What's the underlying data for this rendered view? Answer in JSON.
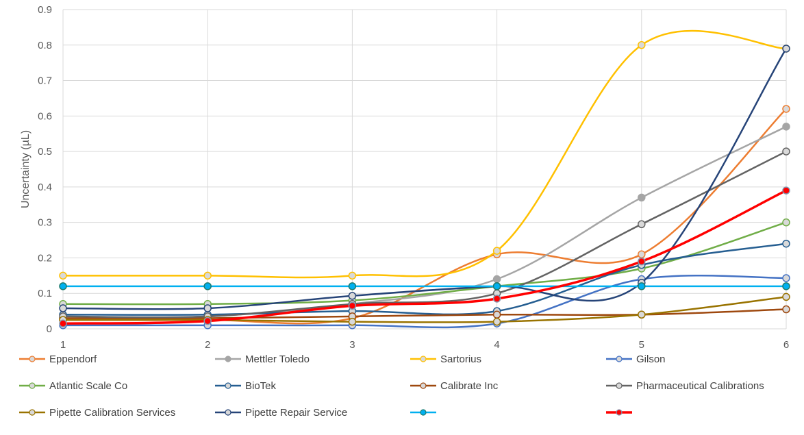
{
  "chart_data": {
    "type": "line",
    "smooth": true,
    "title": "",
    "xlabel": "",
    "ylabel": "Uncertainty (µL)",
    "x": [
      1,
      2,
      3,
      4,
      5,
      6
    ],
    "xlim": [
      1,
      6
    ],
    "ylim": [
      0,
      0.9
    ],
    "yticks": [
      "0",
      "0.1",
      "0.2",
      "0.3",
      "0.4",
      "0.5",
      "0.6",
      "0.7",
      "0.8",
      "0.9"
    ],
    "xticks": [
      "1",
      "2",
      "3",
      "4",
      "5",
      "6"
    ],
    "grid": true,
    "legend_position": "bottom",
    "series": [
      {
        "name": "Eppendorf",
        "color": "#ed7d31",
        "marker_fill": "#d9d9d9",
        "values": [
          0.025,
          0.025,
          0.03,
          0.21,
          0.21,
          0.62
        ]
      },
      {
        "name": "Mettler Toledo",
        "color": "#a5a5a5",
        "marker_fill": "#a5a5a5",
        "values": [
          0.03,
          0.035,
          0.07,
          0.14,
          0.37,
          0.57
        ]
      },
      {
        "name": "Sartorius",
        "color": "#ffc000",
        "marker_fill": "#d9d9d9",
        "values": [
          0.15,
          0.15,
          0.15,
          0.22,
          0.8,
          0.79
        ]
      },
      {
        "name": "Gilson",
        "color": "#4472c4",
        "marker_fill": "#d9d9d9",
        "values": [
          0.01,
          0.01,
          0.01,
          0.015,
          0.14,
          0.143
        ]
      },
      {
        "name": "Atlantic Scale Co",
        "color": "#70ad47",
        "marker_fill": "#d9d9d9",
        "values": [
          0.07,
          0.07,
          0.08,
          0.12,
          0.17,
          0.3
        ]
      },
      {
        "name": "BioTek",
        "color": "#255e91",
        "marker_fill": "#d9d9d9",
        "values": [
          0.04,
          0.04,
          0.05,
          0.05,
          0.18,
          0.24
        ]
      },
      {
        "name": "Calibrate Inc",
        "color": "#9e480e",
        "marker_fill": "#d9d9d9",
        "values": [
          0.03,
          0.03,
          0.035,
          0.04,
          0.04,
          0.055
        ]
      },
      {
        "name": "Pharmaceutical Calibrations",
        "color": "#636363",
        "marker_fill": "#d9d9d9",
        "values": [
          0.035,
          0.035,
          0.07,
          0.1,
          0.295,
          0.5
        ]
      },
      {
        "name": "Pipette Calibration Services",
        "color": "#997300",
        "marker_fill": "#d9d9d9",
        "values": [
          0.025,
          0.025,
          0.02,
          0.02,
          0.04,
          0.09
        ]
      },
      {
        "name": "Pipette Repair Service",
        "color": "#264478",
        "marker_fill": "#d9d9d9",
        "values": [
          0.058,
          0.058,
          0.093,
          0.12,
          0.13,
          0.79
        ]
      },
      {
        "name": "",
        "color": "#00b0f0",
        "marker_fill": "#00b0f0",
        "marker_stroke": "#1e7b6e",
        "values": [
          0.12,
          0.12,
          0.12,
          0.12,
          0.12,
          0.12
        ]
      },
      {
        "name": "",
        "color": "#ff0000",
        "marker_fill": "#ff0000",
        "marker_stroke": "#8497b0",
        "width": 3.5,
        "values": [
          0.015,
          0.022,
          0.065,
          0.085,
          0.19,
          0.39
        ]
      }
    ]
  }
}
